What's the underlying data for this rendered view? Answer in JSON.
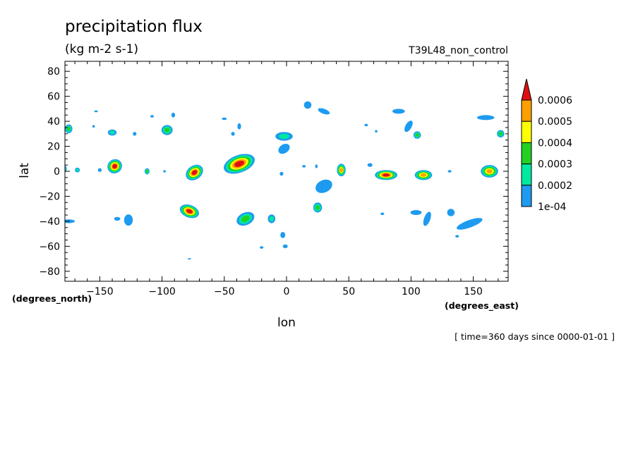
{
  "title": "precipitation flux",
  "units": "(kg m-2 s-1)",
  "run_label": "T39L48_non_control",
  "time_note": "[ time=360 days since 0000-01-01 ]",
  "chart_data": {
    "type": "heatmap",
    "xlabel": "lon",
    "ylabel": "lat",
    "x_units": "(degrees_east)",
    "y_units": "(degrees_north)",
    "xlim": [
      -178,
      178
    ],
    "ylim": [
      -88,
      88
    ],
    "x_ticks": [
      -150,
      -100,
      -50,
      0,
      50,
      100,
      150
    ],
    "y_ticks": [
      80,
      60,
      40,
      20,
      0,
      -20,
      -40,
      -60,
      -80
    ],
    "grid": false,
    "legend": "right",
    "colorbar": {
      "levels": [
        0.0001,
        0.0002,
        0.0003,
        0.0004,
        0.0005,
        0.0006
      ],
      "labels": [
        "1e-04",
        "0.0002",
        "0.0003",
        "0.0004",
        "0.0005",
        "0.0006"
      ],
      "colors": [
        "#1e9bf0",
        "#00e8a0",
        "#22d022",
        "#ffff00",
        "#ff9f00",
        "#e01010"
      ],
      "extend": "max"
    },
    "features": [
      {
        "lon": -175,
        "lat": 34,
        "w": 6,
        "h": 7,
        "level": 3
      },
      {
        "lon": -153,
        "lat": 48,
        "w": 3,
        "h": 1.5,
        "level": 1
      },
      {
        "lon": -155,
        "lat": 36,
        "w": 2,
        "h": 2,
        "level": 1
      },
      {
        "lon": -140,
        "lat": 31,
        "w": 7,
        "h": 5,
        "level": 2
      },
      {
        "lon": -122,
        "lat": 30,
        "w": 3,
        "h": 3,
        "level": 1
      },
      {
        "lon": -108,
        "lat": 44,
        "w": 3,
        "h": 2,
        "level": 1
      },
      {
        "lon": -96,
        "lat": 33,
        "w": 9,
        "h": 8,
        "level": 3
      },
      {
        "lon": -91,
        "lat": 45,
        "w": 3,
        "h": 4,
        "level": 1
      },
      {
        "lon": -50,
        "lat": 42,
        "w": 4,
        "h": 2,
        "level": 1
      },
      {
        "lon": -43,
        "lat": 30,
        "w": 3,
        "h": 3,
        "level": 1
      },
      {
        "lon": -38,
        "lat": 36,
        "w": 3,
        "h": 5,
        "level": 1
      },
      {
        "lon": 17,
        "lat": 53,
        "w": 6,
        "h": 6,
        "level": 1
      },
      {
        "lon": 30,
        "lat": 48,
        "w": 10,
        "h": 4,
        "level": 1,
        "rot": 20
      },
      {
        "lon": -2,
        "lat": 28,
        "w": 14,
        "h": 7,
        "level": 2
      },
      {
        "lon": -2,
        "lat": 18,
        "w": 10,
        "h": 7,
        "level": 1,
        "rot": -35
      },
      {
        "lon": 64,
        "lat": 37,
        "w": 3,
        "h": 2,
        "level": 1
      },
      {
        "lon": 72,
        "lat": 32,
        "w": 2,
        "h": 2,
        "level": 1
      },
      {
        "lon": 90,
        "lat": 48,
        "w": 10,
        "h": 4,
        "level": 1
      },
      {
        "lon": 98,
        "lat": 36,
        "w": 5,
        "h": 10,
        "level": 1,
        "rot": 30
      },
      {
        "lon": 105,
        "lat": 29,
        "w": 6,
        "h": 6,
        "level": 3
      },
      {
        "lon": 160,
        "lat": 43,
        "w": 14,
        "h": 4,
        "level": 1
      },
      {
        "lon": 172,
        "lat": 30,
        "w": 6,
        "h": 6,
        "level": 3
      },
      {
        "lon": -178,
        "lat": 2,
        "w": 3,
        "h": 5,
        "level": 2
      },
      {
        "lon": -168,
        "lat": 1,
        "w": 4,
        "h": 4,
        "level": 2
      },
      {
        "lon": -150,
        "lat": 1,
        "w": 3,
        "h": 3,
        "level": 1
      },
      {
        "lon": -138,
        "lat": 4,
        "w": 12,
        "h": 11,
        "level": 6,
        "rot": -35
      },
      {
        "lon": -112,
        "lat": 0,
        "w": 4,
        "h": 5,
        "level": 3
      },
      {
        "lon": -98,
        "lat": 0,
        "w": 2,
        "h": 2,
        "level": 1
      },
      {
        "lon": -74,
        "lat": -1,
        "w": 15,
        "h": 11,
        "level": 6,
        "rot": -35
      },
      {
        "lon": -38,
        "lat": 6,
        "w": 26,
        "h": 14,
        "level": 6,
        "rot": -20
      },
      {
        "lon": -4,
        "lat": -2,
        "w": 3,
        "h": 3,
        "level": 1
      },
      {
        "lon": 14,
        "lat": 4,
        "w": 3,
        "h": 2,
        "level": 1
      },
      {
        "lon": 24,
        "lat": 4,
        "w": 2,
        "h": 3,
        "level": 1
      },
      {
        "lon": 44,
        "lat": 1,
        "w": 7,
        "h": 10,
        "level": 5
      },
      {
        "lon": 67,
        "lat": 5,
        "w": 4,
        "h": 3,
        "level": 1
      },
      {
        "lon": 80,
        "lat": -3,
        "w": 18,
        "h": 8,
        "level": 6
      },
      {
        "lon": 110,
        "lat": -3,
        "w": 14,
        "h": 8,
        "level": 5
      },
      {
        "lon": 131,
        "lat": 0,
        "w": 3,
        "h": 2,
        "level": 1
      },
      {
        "lon": 163,
        "lat": 0,
        "w": 14,
        "h": 10,
        "level": 5
      },
      {
        "lon": 30,
        "lat": -12,
        "w": 10,
        "h": 14,
        "level": 1,
        "rot": 65
      },
      {
        "lon": 25,
        "lat": -29,
        "w": 7,
        "h": 8,
        "level": 3
      },
      {
        "lon": -175,
        "lat": -40,
        "w": 10,
        "h": 3,
        "level": 1
      },
      {
        "lon": -127,
        "lat": -39,
        "w": 7,
        "h": 9,
        "level": 1
      },
      {
        "lon": -136,
        "lat": -38,
        "w": 5,
        "h": 3,
        "level": 1
      },
      {
        "lon": -78,
        "lat": -32,
        "w": 16,
        "h": 10,
        "level": 6,
        "rot": 20
      },
      {
        "lon": -33,
        "lat": -38,
        "w": 15,
        "h": 10,
        "level": 3,
        "rot": -25
      },
      {
        "lon": -12,
        "lat": -38,
        "w": 6,
        "h": 7,
        "level": 2
      },
      {
        "lon": -3,
        "lat": -51,
        "w": 4,
        "h": 5,
        "level": 1
      },
      {
        "lon": -1,
        "lat": -60,
        "w": 4,
        "h": 3,
        "level": 1
      },
      {
        "lon": -20,
        "lat": -61,
        "w": 3,
        "h": 2,
        "level": 1
      },
      {
        "lon": -78,
        "lat": -70,
        "w": 3,
        "h": 1,
        "level": 1
      },
      {
        "lon": 77,
        "lat": -34,
        "w": 3,
        "h": 2,
        "level": 1
      },
      {
        "lon": 104,
        "lat": -33,
        "w": 9,
        "h": 4,
        "level": 1
      },
      {
        "lon": 113,
        "lat": -38,
        "w": 5,
        "h": 12,
        "level": 1,
        "rot": 20
      },
      {
        "lon": 132,
        "lat": -33,
        "w": 6,
        "h": 6,
        "level": 1
      },
      {
        "lon": 147,
        "lat": -42,
        "w": 22,
        "h": 6,
        "level": 1,
        "rot": -20
      },
      {
        "lon": 137,
        "lat": -52,
        "w": 3,
        "h": 2,
        "level": 1
      }
    ]
  }
}
